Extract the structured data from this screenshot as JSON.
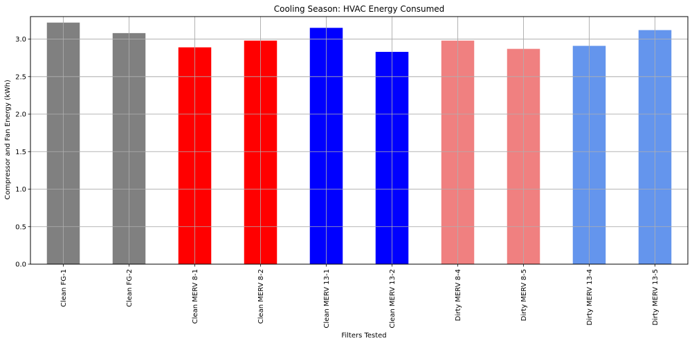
{
  "chart_data": {
    "type": "bar",
    "title": "Cooling Season: HVAC Energy Consumed",
    "xlabel": "Filters Tested",
    "ylabel": "Compressor and Fan Energy (kWh)",
    "ylim": [
      0,
      3.3
    ],
    "yticks": [
      0.0,
      0.5,
      1.0,
      1.5,
      2.0,
      2.5,
      3.0
    ],
    "ytick_labels": [
      "0.0",
      "0.5",
      "1.0",
      "1.5",
      "2.0",
      "2.5",
      "3.0"
    ],
    "grid": true,
    "categories": [
      "Clean FG-1",
      "Clean FG-2",
      "Clean MERV 8-1",
      "Clean MERV 8-2",
      "Clean MERV 13-1",
      "Clean MERV 13-2",
      "Dirty MERV 8-4",
      "Dirty MERV 8-5",
      "Dirty MERV 13-4",
      "Dirty MERV 13-5"
    ],
    "values": [
      3.22,
      3.08,
      2.89,
      2.98,
      3.15,
      2.83,
      2.98,
      2.87,
      2.91,
      3.12
    ],
    "colors": [
      "#808080",
      "#808080",
      "#ff0000",
      "#ff0000",
      "#0000ff",
      "#0000ff",
      "#f08080",
      "#f08080",
      "#6495ed",
      "#6495ed"
    ]
  }
}
